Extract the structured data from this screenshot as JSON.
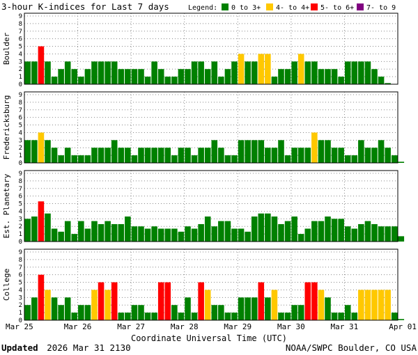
{
  "chart_data": {
    "type": "bar",
    "title": "3-hour K-indices for Last 7 days",
    "legend": {
      "label": "Legend:",
      "entries": [
        {
          "label": "0 to 3+",
          "color": "#008000"
        },
        {
          "label": "4- to 4+",
          "color": "#ffc800"
        },
        {
          "label": "5- to 6+",
          "color": "#ff0000"
        },
        {
          "label": "7- to 9",
          "color": "#800080"
        }
      ]
    },
    "ylim": [
      0,
      9
    ],
    "yticks": [
      "0",
      "1",
      "2",
      "3",
      "4",
      "5",
      "6",
      "7",
      "8",
      "9"
    ],
    "xlabel": "Coordinate Universal Time (UTC)",
    "xticks": [
      "Mar 25",
      "Mar 26",
      "Mar 27",
      "Mar 28",
      "Mar 29",
      "Mar 30",
      "Mar 31",
      "Apr 01"
    ],
    "bins_per_day": 8,
    "days": 7,
    "panels": [
      {
        "name": "Boulder",
        "values": [
          3,
          3,
          5,
          3,
          1,
          2,
          3,
          2,
          1,
          2,
          3,
          3,
          3,
          3,
          2,
          2,
          2,
          2,
          1,
          3,
          2,
          1,
          1,
          2,
          2,
          3,
          3,
          2,
          3,
          1,
          2,
          3,
          4,
          3,
          3,
          4,
          4,
          1,
          2,
          2,
          3,
          4,
          3,
          3,
          2,
          2,
          2,
          1,
          3,
          3,
          3,
          3,
          2,
          1,
          0.15
        ]
      },
      {
        "name": "Fredericksburg",
        "values": [
          3,
          3,
          4,
          3,
          2,
          1,
          2,
          1,
          1,
          1,
          2,
          2,
          2,
          3,
          2,
          2,
          1,
          2,
          2,
          2,
          2,
          2,
          1,
          2,
          2,
          1,
          2,
          2,
          3,
          2,
          1,
          1,
          3,
          3,
          3,
          3,
          2,
          2,
          3,
          1,
          2,
          2,
          2,
          4,
          3,
          3,
          2,
          2,
          1,
          1,
          3,
          2,
          2,
          3,
          2,
          1,
          0.15
        ]
      },
      {
        "name": "Est. Planetary",
        "values": [
          3,
          3.3,
          5.3,
          3.7,
          1.7,
          1.3,
          2.7,
          1.0,
          2.7,
          1.7,
          2.7,
          2.3,
          2.7,
          2.3,
          2.3,
          3.3,
          2.0,
          2.0,
          1.7,
          2.0,
          1.7,
          1.7,
          1.7,
          1.3,
          2.0,
          1.7,
          2.3,
          3.3,
          2.0,
          2.7,
          2.7,
          1.7,
          1.7,
          1.3,
          3.3,
          3.7,
          3.7,
          3.3,
          2.3,
          2.7,
          3.3,
          1.0,
          1.7,
          2.7,
          2.7,
          3.3,
          3.0,
          3.0,
          2.0,
          1.7,
          2.3,
          2.7,
          2.3,
          2.0,
          2.0,
          2.0,
          0.7
        ]
      },
      {
        "name": "College",
        "values": [
          2,
          3,
          6,
          4,
          3,
          2,
          3,
          1,
          2,
          2,
          4,
          5,
          4,
          5,
          1,
          1,
          2,
          2,
          1,
          1,
          5,
          5,
          2,
          1,
          3,
          1,
          5,
          4,
          2,
          2,
          1,
          1,
          3,
          3,
          3,
          5,
          3,
          4,
          1,
          1,
          2,
          2,
          5,
          5,
          4,
          3,
          1,
          1,
          2,
          1,
          4,
          4,
          4,
          4,
          4,
          1,
          0.15
        ]
      }
    ],
    "footer_updated_label": "Updated",
    "footer_updated_value": "2026 Mar 31 2130",
    "footer_credit": "NOAA/SWPC Boulder, CO USA"
  }
}
